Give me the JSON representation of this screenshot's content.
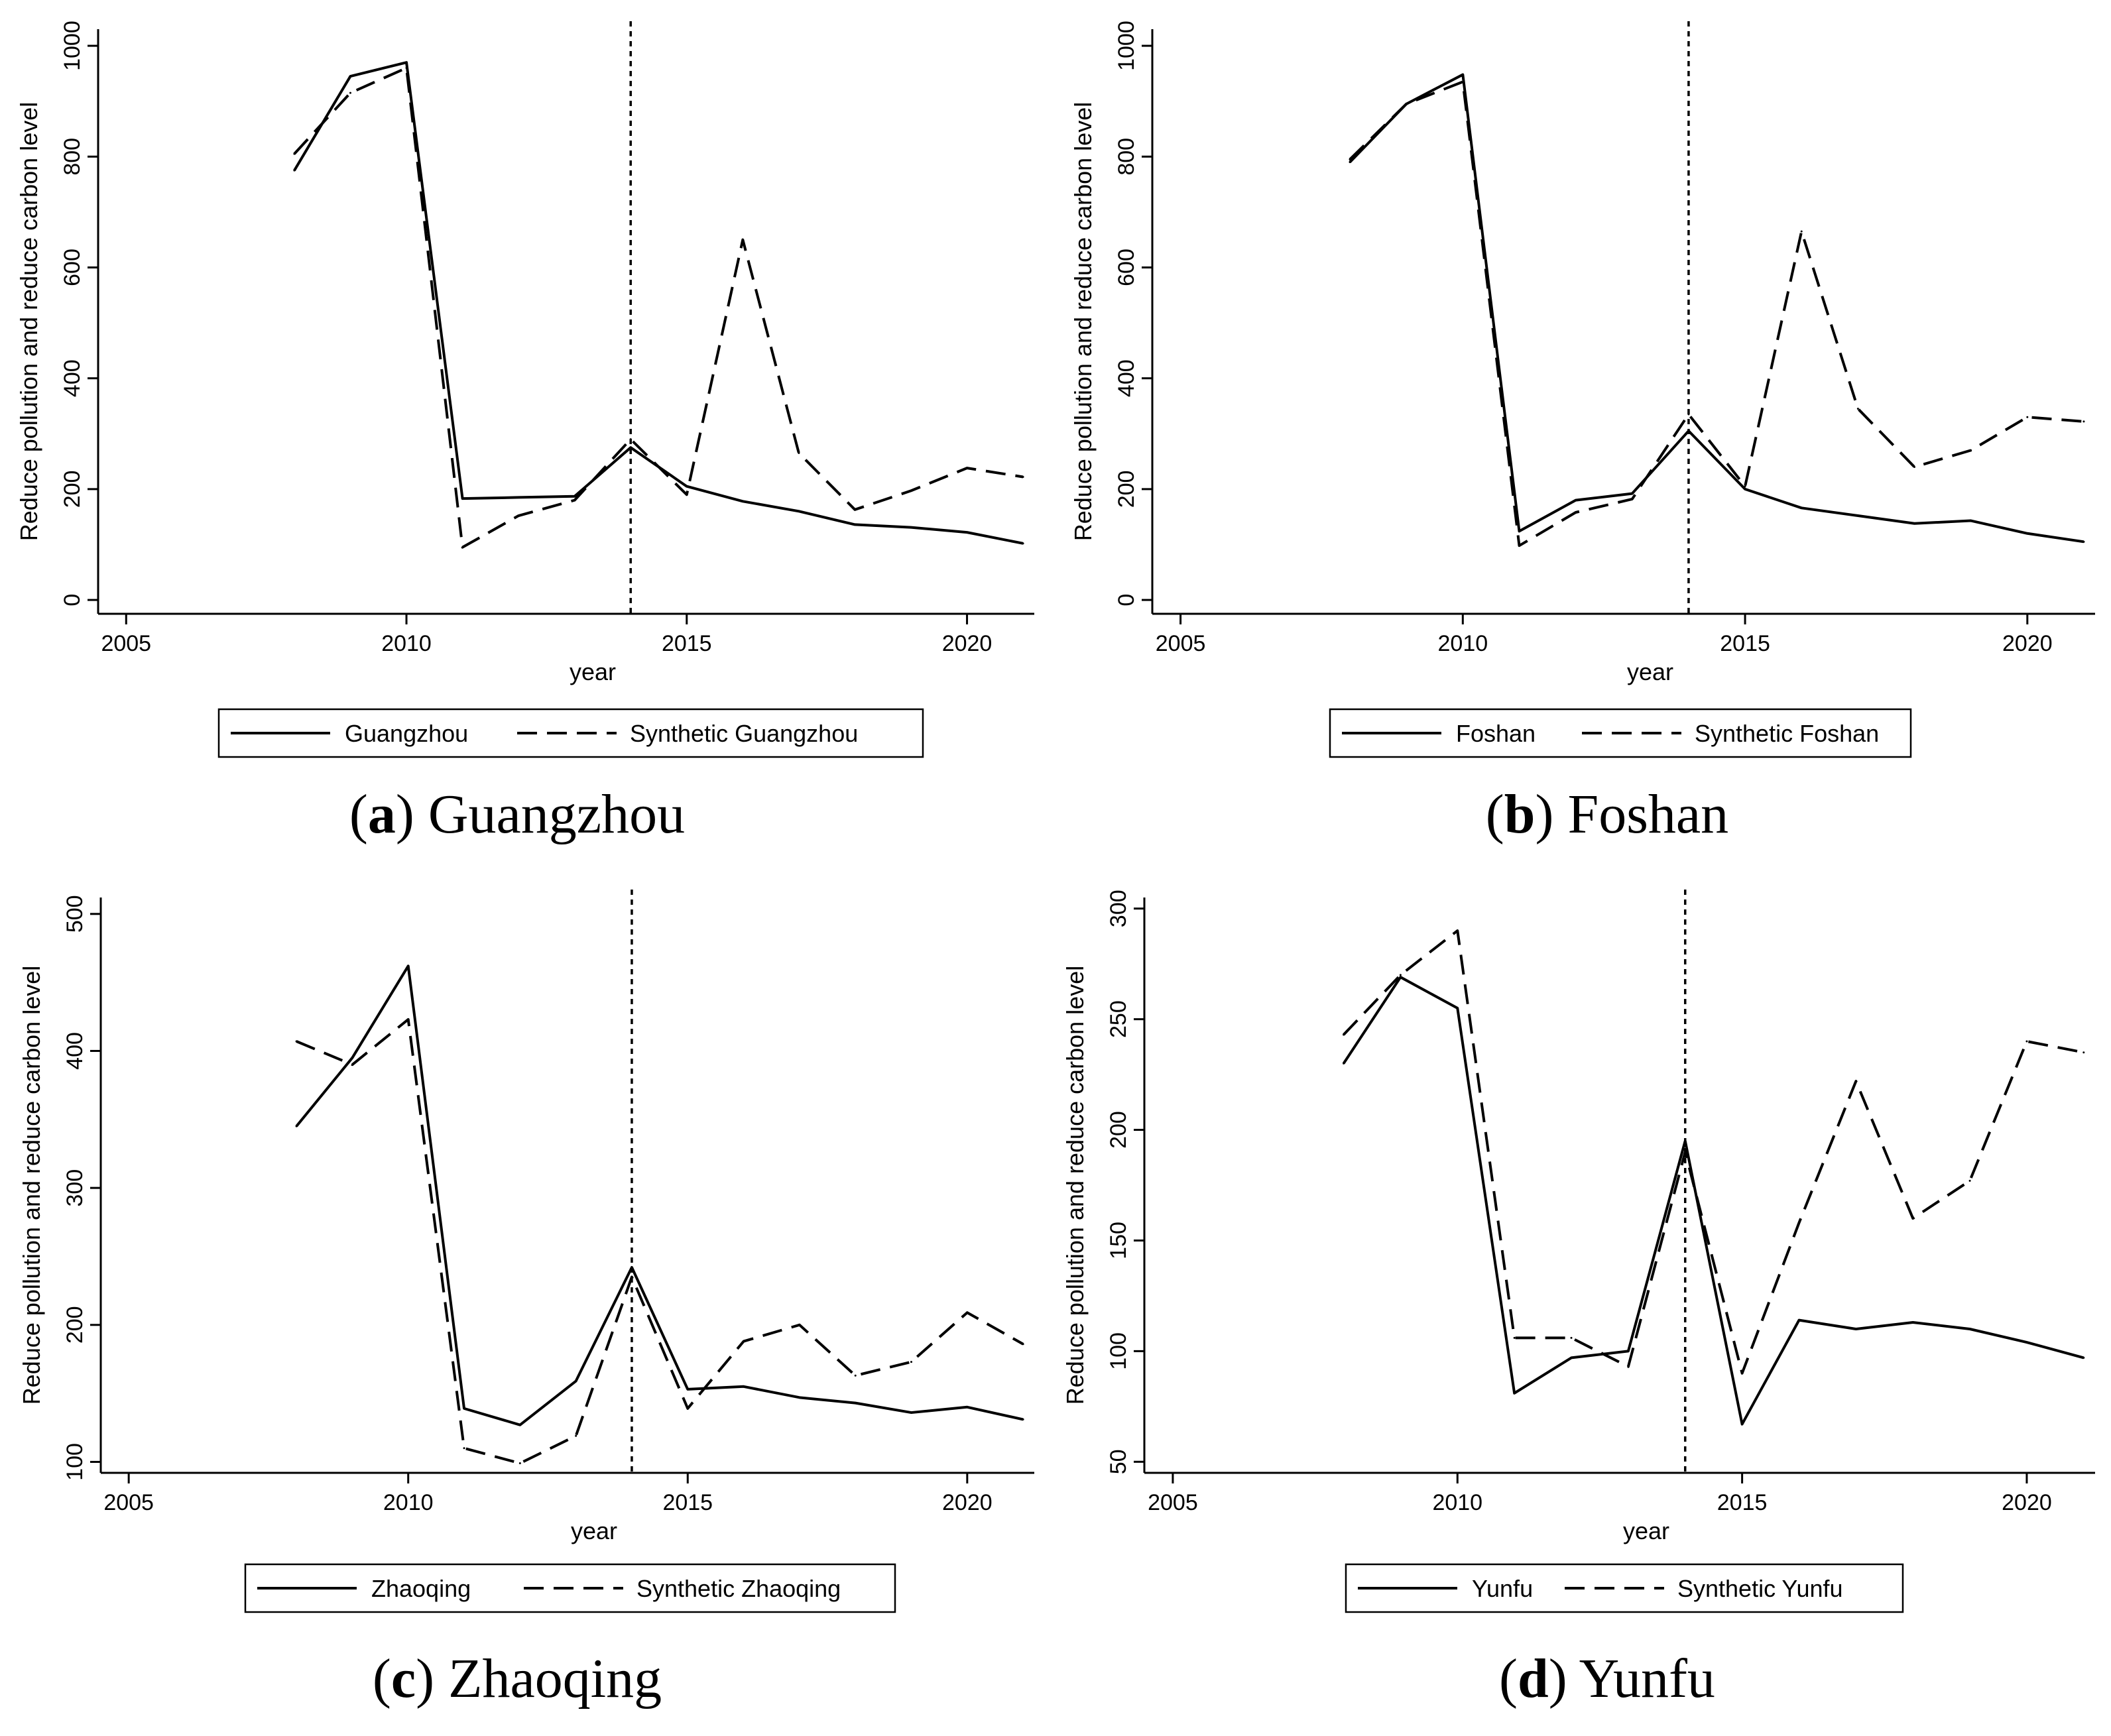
{
  "chart_data": [
    {
      "type": "line",
      "panel_letter": "a",
      "caption": "Guangzhou",
      "xlabel": "year",
      "ylabel": "Reduce pollution and reduce carbon level",
      "xlim": [
        2004.5,
        2021.2
      ],
      "ylim": [
        -25,
        1030
      ],
      "xticks": [
        2005,
        2010,
        2015,
        2020
      ],
      "yticks": [
        0,
        200,
        400,
        600,
        800,
        1000
      ],
      "intervention_year": 2014,
      "x": [
        2008,
        2009,
        2010,
        2011,
        2012,
        2013,
        2014,
        2015,
        2016,
        2017,
        2018,
        2019,
        2020,
        2021
      ],
      "series": [
        {
          "name": "Guangzhou",
          "style": "solid",
          "values": [
            775,
            945,
            970,
            183,
            185,
            187,
            275,
            205,
            178,
            160,
            136,
            131,
            122,
            102
          ]
        },
        {
          "name": "Synthetic Guangzhou",
          "style": "dashed",
          "values": [
            805,
            915,
            960,
            95,
            152,
            180,
            290,
            190,
            650,
            265,
            163,
            197,
            238,
            222
          ]
        }
      ]
    },
    {
      "type": "line",
      "panel_letter": "b",
      "caption": "Foshan",
      "xlabel": "year",
      "ylabel": "Reduce pollution and reduce carbon level",
      "xlim": [
        2004.5,
        2021.2
      ],
      "ylim": [
        -25,
        1030
      ],
      "xticks": [
        2005,
        2010,
        2015,
        2020
      ],
      "yticks": [
        0,
        200,
        400,
        600,
        800,
        1000
      ],
      "intervention_year": 2014,
      "x": [
        2008,
        2009,
        2010,
        2011,
        2012,
        2013,
        2014,
        2015,
        2016,
        2017,
        2018,
        2019,
        2020,
        2021
      ],
      "series": [
        {
          "name": "Foshan",
          "style": "solid",
          "values": [
            790,
            895,
            948,
            124,
            180,
            192,
            305,
            200,
            166,
            152,
            138,
            143,
            120,
            105
          ]
        },
        {
          "name": "Synthetic Foshan",
          "style": "dashed",
          "values": [
            795,
            895,
            935,
            98,
            158,
            182,
            335,
            205,
            665,
            345,
            240,
            270,
            330,
            322
          ]
        }
      ]
    },
    {
      "type": "line",
      "panel_letter": "c",
      "caption": "Zhaoqing",
      "xlabel": "year",
      "ylabel": "Reduce pollution and reduce carbon level",
      "xlim": [
        2004.5,
        2021.2
      ],
      "ylim": [
        92,
        512
      ],
      "xticks": [
        2005,
        2010,
        2015,
        2020
      ],
      "yticks": [
        100,
        200,
        300,
        400,
        500
      ],
      "intervention_year": 2014,
      "x": [
        2008,
        2009,
        2010,
        2011,
        2012,
        2013,
        2014,
        2015,
        2016,
        2017,
        2018,
        2019,
        2020,
        2021
      ],
      "series": [
        {
          "name": "Zhaoqing",
          "style": "solid",
          "values": [
            345,
            395,
            462,
            139,
            127,
            159,
            242,
            153,
            155,
            147,
            143,
            136,
            140,
            131
          ]
        },
        {
          "name": "Synthetic Zhaoqing",
          "style": "dashed",
          "values": [
            407,
            390,
            423,
            110,
            99,
            119,
            235,
            139,
            188,
            200,
            163,
            173,
            209,
            186
          ]
        }
      ]
    },
    {
      "type": "line",
      "panel_letter": "d",
      "caption": "Yunfu",
      "xlabel": "year",
      "ylabel": "Reduce pollution and reduce carbon level",
      "xlim": [
        2004.5,
        2021.2
      ],
      "ylim": [
        45,
        305
      ],
      "xticks": [
        2005,
        2010,
        2015,
        2020
      ],
      "yticks": [
        50,
        100,
        150,
        200,
        250,
        300
      ],
      "intervention_year": 2014,
      "x": [
        2008,
        2009,
        2010,
        2011,
        2012,
        2013,
        2014,
        2015,
        2016,
        2017,
        2018,
        2019,
        2020,
        2021
      ],
      "series": [
        {
          "name": "Yunfu",
          "style": "solid",
          "values": [
            230,
            269,
            255,
            81,
            97,
            100,
            195,
            67,
            114,
            110,
            113,
            110,
            104,
            97
          ]
        },
        {
          "name": "Synthetic Yunfu",
          "style": "dashed",
          "values": [
            243,
            270,
            290,
            106,
            106,
            93,
            190,
            90,
            158,
            222,
            160,
            177,
            240,
            235
          ]
        }
      ]
    }
  ]
}
